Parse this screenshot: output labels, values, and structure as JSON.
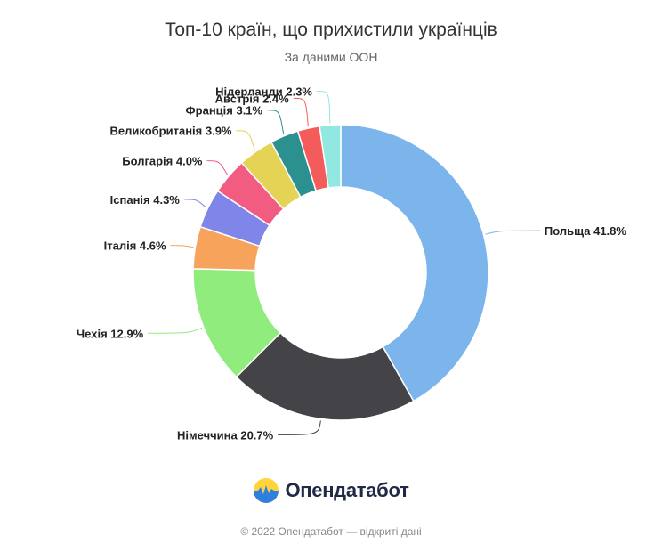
{
  "title": "Топ-10 країн, що прихистили українців",
  "subtitle": "За даними ООН",
  "chart_data": {
    "type": "pie",
    "title": "Топ-10 країн, що прихистили українців",
    "subtitle": "За даними ООН",
    "value_suffix": "%",
    "slices": [
      {
        "label": "Польща",
        "value": 41.8,
        "color": "#7cb5ec"
      },
      {
        "label": "Німеччина",
        "value": 20.7,
        "color": "#434348"
      },
      {
        "label": "Чехія",
        "value": 12.9,
        "color": "#90ed7d"
      },
      {
        "label": "Італія",
        "value": 4.6,
        "color": "#f7a35c"
      },
      {
        "label": "Іспанія",
        "value": 4.3,
        "color": "#8085e9"
      },
      {
        "label": "Болгарія",
        "value": 4.0,
        "color": "#f15c80"
      },
      {
        "label": "Великобританія",
        "value": 3.9,
        "color": "#e4d354"
      },
      {
        "label": "Франція",
        "value": 3.1,
        "color": "#2b908f"
      },
      {
        "label": "Австрія",
        "value": 2.4,
        "color": "#f45b5b"
      },
      {
        "label": "Нідерланди",
        "value": 2.3,
        "color": "#91e8e1"
      }
    ]
  },
  "brand": {
    "name": "Опендатабот",
    "logo_icon": "sun-over-wave-logo-icon"
  },
  "footer": "© 2022 Опендатабот — відкриті дані"
}
